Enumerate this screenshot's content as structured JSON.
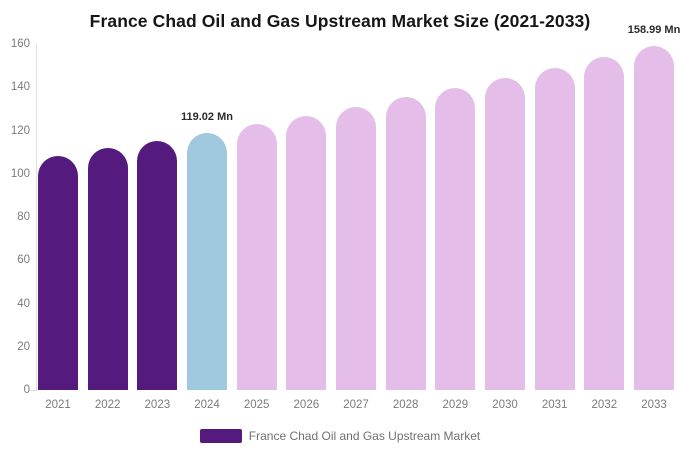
{
  "title": "France Chad Oil and Gas Upstream Market Size (2021-2033)",
  "colors": {
    "historical_bar": "#541a7e",
    "highlight_bar": "#a0c8de",
    "forecast_bar": "#e4bee8",
    "axis_line": "#e0e0e0",
    "axis_text": "#7b7b7b",
    "title_text": "#161616",
    "annotation_text": "#2b2b2b",
    "legend_text": "#707070"
  },
  "legend": {
    "label": "France Chad Oil and Gas Upstream Market",
    "marker_color": "#541a7e"
  },
  "annotations": [
    {
      "year": "2024",
      "label": "119.02 Mn"
    },
    {
      "year": "2033",
      "label": "158.99 Mn"
    }
  ],
  "chart_data": {
    "type": "bar",
    "title": "France Chad Oil and Gas Upstream Market Size (2021-2033)",
    "unit": "Mn",
    "categories": [
      "2021",
      "2022",
      "2023",
      "2024",
      "2025",
      "2026",
      "2027",
      "2028",
      "2029",
      "2030",
      "2031",
      "2032",
      "2033"
    ],
    "values": [
      108.1,
      111.7,
      115.3,
      119.02,
      122.91,
      126.93,
      131.08,
      135.37,
      139.8,
      144.37,
      149.09,
      153.96,
      158.99
    ],
    "bar_colors": [
      "#541a7e",
      "#541a7e",
      "#541a7e",
      "#a0c8de",
      "#e4bee8",
      "#e4bee8",
      "#e4bee8",
      "#e4bee8",
      "#e4bee8",
      "#e4bee8",
      "#e4bee8",
      "#e4bee8",
      "#e4bee8"
    ],
    "xlabel": "",
    "ylabel": "",
    "ylim": [
      0,
      160
    ],
    "yticks": [
      0,
      20,
      40,
      60,
      80,
      100,
      120,
      140,
      160
    ],
    "grid": false,
    "legend_position": "bottom"
  }
}
